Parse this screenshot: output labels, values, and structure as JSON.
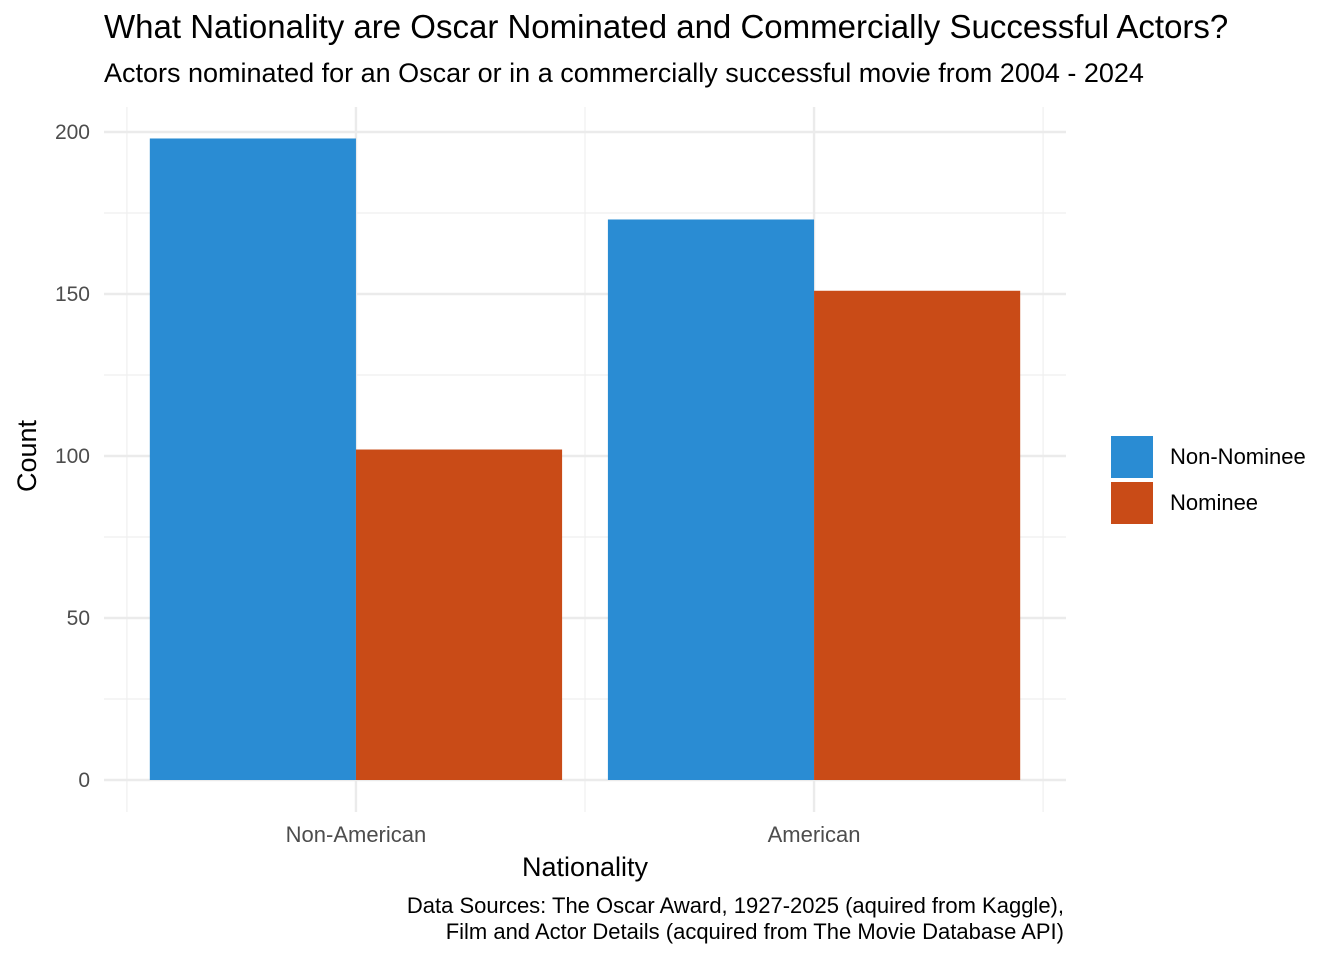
{
  "chart_data": {
    "type": "bar",
    "title": "What Nationality are Oscar Nominated and Commercially Successful Actors?",
    "subtitle": "Actors nominated for an Oscar or in a commercially successful movie from 2004 - 2024",
    "xlabel": "Nationality",
    "ylabel": "Count",
    "categories": [
      "Non-American",
      "American"
    ],
    "series": [
      {
        "name": "Non-Nominee",
        "color": "#2a8cd3",
        "values": [
          198,
          173
        ]
      },
      {
        "name": "Nominee",
        "color": "#c94b17",
        "values": [
          102,
          151
        ]
      }
    ],
    "ylim": [
      0,
      200
    ],
    "yticks": [
      0,
      50,
      100,
      150,
      200
    ],
    "ytick_labels": [
      "0",
      "50",
      "100",
      "150",
      "200"
    ],
    "grid": true,
    "legend_position": "right",
    "caption_lines": [
      "Data Sources: The Oscar Award, 1927-2025 (aquired from Kaggle),",
      "Film and Actor Details (acquired from The Movie Database API)"
    ]
  }
}
